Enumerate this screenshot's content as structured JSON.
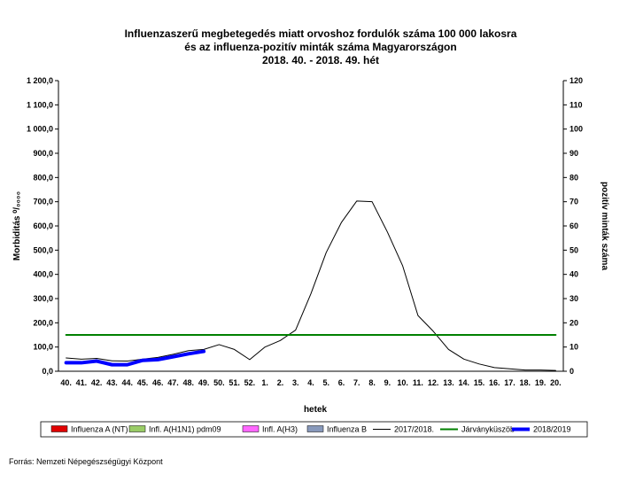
{
  "chart_data": {
    "type": "line",
    "title": [
      "Influenzaszerű megbetegedés miatt orvoshoz fordulók száma 100 000 lakosra",
      "és az influenza-pozitív minták száma Magyarországon",
      "2018. 40. - 2018. 49. hét"
    ],
    "x_label": "hetek",
    "y_label": "Morbiditás ⁰/₀₀₀₀",
    "y2_label": "pozitív minták száma",
    "source": "Forrás: Nemzeti Népegészségügyi Központ",
    "categories": [
      "40.",
      "41.",
      "42.",
      "43.",
      "44.",
      "45.",
      "46.",
      "47.",
      "48.",
      "49.",
      "50.",
      "51.",
      "52.",
      "1.",
      "2.",
      "3.",
      "4.",
      "5.",
      "6.",
      "7.",
      "8.",
      "9.",
      "10.",
      "11.",
      "12.",
      "13.",
      "14.",
      "15.",
      "16.",
      "17.",
      "18.",
      "19.",
      "20."
    ],
    "ylim": [
      0,
      1200
    ],
    "yticks": [
      {
        "value": 0,
        "label": "0,0"
      },
      {
        "value": 100,
        "label": "100,0"
      },
      {
        "value": 200,
        "label": "200,0"
      },
      {
        "value": 300,
        "label": "300,0"
      },
      {
        "value": 400,
        "label": "400,0"
      },
      {
        "value": 500,
        "label": "500,0"
      },
      {
        "value": 600,
        "label": "600,0"
      },
      {
        "value": 700,
        "label": "700,0"
      },
      {
        "value": 800,
        "label": "800,0"
      },
      {
        "value": 900,
        "label": "900,0"
      },
      {
        "value": 1000,
        "label": "1 000,0"
      },
      {
        "value": 1100,
        "label": "1 100,0"
      },
      {
        "value": 1200,
        "label": "1 200,0"
      }
    ],
    "y2lim": [
      0,
      120
    ],
    "y2ticks": [
      0,
      10,
      20,
      30,
      40,
      50,
      60,
      70,
      80,
      90,
      100,
      110,
      120
    ],
    "series": [
      {
        "name": "Influenza A (NT)",
        "type": "bar",
        "axis": "y2",
        "color": "#e00000",
        "values": [
          null,
          null,
          null,
          null,
          null,
          null,
          null,
          null,
          null,
          null,
          null,
          null,
          null,
          null,
          null,
          null,
          null,
          null,
          null,
          null,
          null,
          null,
          null,
          null,
          null,
          null,
          null,
          null,
          null,
          null,
          null,
          null,
          null
        ]
      },
      {
        "name": "Infl. A(H1N1) pdm09",
        "type": "bar",
        "axis": "y2",
        "color": "#99cc66",
        "values": [
          null,
          null,
          null,
          null,
          null,
          null,
          null,
          null,
          null,
          null,
          null,
          null,
          null,
          null,
          null,
          null,
          null,
          null,
          null,
          null,
          null,
          null,
          null,
          null,
          null,
          null,
          null,
          null,
          null,
          null,
          null,
          null,
          null
        ]
      },
      {
        "name": "Infl. A(H3)",
        "type": "bar",
        "axis": "y2",
        "color": "#ff66ff",
        "values": [
          null,
          null,
          null,
          null,
          null,
          null,
          null,
          null,
          null,
          null,
          null,
          null,
          null,
          null,
          null,
          null,
          null,
          null,
          null,
          null,
          null,
          null,
          null,
          null,
          null,
          null,
          null,
          null,
          null,
          null,
          null,
          null,
          null
        ]
      },
      {
        "name": "Influenza B",
        "type": "bar",
        "axis": "y2",
        "color": "#8899bb",
        "values": [
          null,
          null,
          null,
          null,
          null,
          null,
          null,
          null,
          null,
          null,
          null,
          null,
          null,
          null,
          null,
          null,
          null,
          null,
          null,
          null,
          null,
          null,
          null,
          null,
          null,
          null,
          null,
          null,
          null,
          null,
          null,
          null,
          null
        ]
      },
      {
        "name": "2017/2018.",
        "type": "line",
        "color": "#000000",
        "width": 1,
        "values": [
          55,
          50,
          53,
          43,
          42,
          50,
          57,
          70,
          85,
          90,
          110,
          90,
          48,
          100,
          127,
          170,
          320,
          490,
          615,
          703,
          700,
          575,
          435,
          230,
          165,
          90,
          50,
          30,
          15,
          10,
          5,
          5,
          3
        ]
      },
      {
        "name": "Járványküszöb",
        "type": "line",
        "color": "#008000",
        "width": 2,
        "values": [
          150,
          150,
          150,
          150,
          150,
          150,
          150,
          150,
          150,
          150,
          150,
          150,
          150,
          150,
          150,
          150,
          150,
          150,
          150,
          150,
          150,
          150,
          150,
          150,
          150,
          150,
          150,
          150,
          150,
          150,
          150,
          150,
          150
        ]
      },
      {
        "name": "2018/2019",
        "type": "line",
        "color": "#0000ff",
        "width": 4,
        "values": [
          35,
          35,
          42,
          27,
          27,
          45,
          48,
          60,
          72,
          82,
          null,
          null,
          null,
          null,
          null,
          null,
          null,
          null,
          null,
          null,
          null,
          null,
          null,
          null,
          null,
          null,
          null,
          null,
          null,
          null,
          null,
          null,
          null
        ]
      }
    ]
  }
}
